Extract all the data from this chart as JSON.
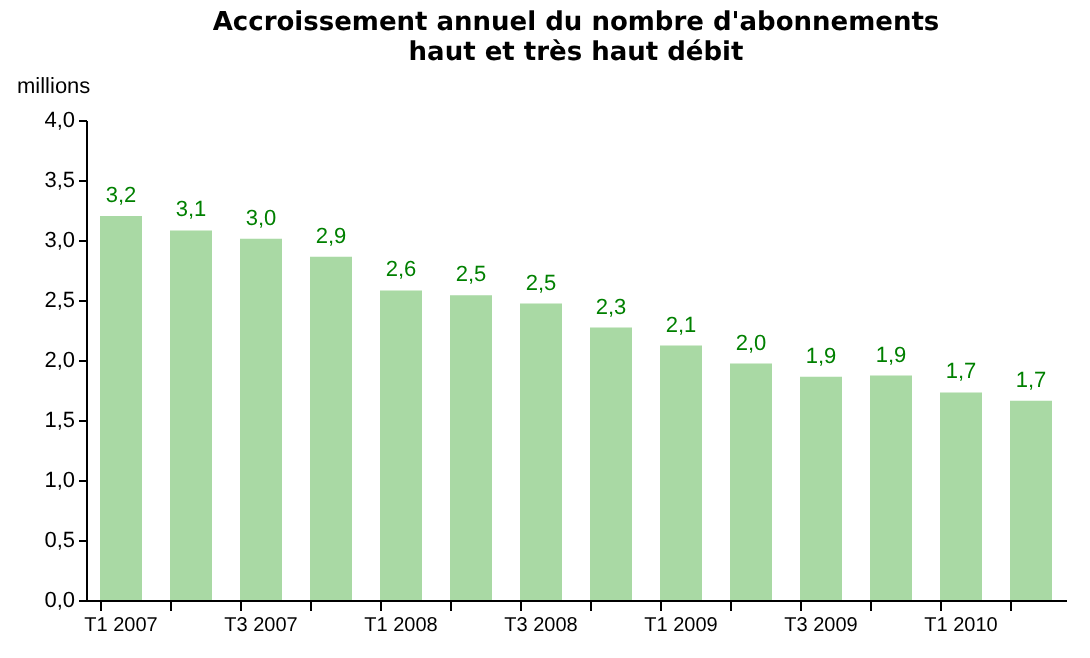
{
  "chart_data": {
    "type": "bar",
    "title": "Accroissement annuel du nombre d'abonnements\nhaut et très haut débit",
    "ylabel": "millions",
    "categories": [
      "T1 2007",
      null,
      "T3 2007",
      null,
      "T1 2008",
      null,
      "T3 2008",
      null,
      "T1 2009",
      null,
      "T3 2009",
      null,
      "T1 2010",
      null
    ],
    "values": [
      3.2,
      3.08,
      3.01,
      2.86,
      2.58,
      2.54,
      2.47,
      2.27,
      2.12,
      1.97,
      1.86,
      1.87,
      1.73,
      1.66
    ],
    "value_labels": [
      "3,2",
      "3,1",
      "3,0",
      "2,9",
      "2,6",
      "2,5",
      "2,5",
      "2,3",
      "2,1",
      "2,0",
      "1,9",
      "1,9",
      "1,7",
      "1,7"
    ],
    "color": "#a9d9a4",
    "ylim": [
      0,
      4
    ],
    "yticks": [
      {
        "value": 0,
        "label": "0,0"
      },
      {
        "value": 0.5,
        "label": "0,5"
      },
      {
        "value": 1,
        "label": "1,0"
      },
      {
        "value": 1.5,
        "label": "1,5"
      },
      {
        "value": 2,
        "label": "2,0"
      },
      {
        "value": 2.5,
        "label": "2,5"
      },
      {
        "value": 3,
        "label": "3,0"
      },
      {
        "value": 3.5,
        "label": "3,5"
      },
      {
        "value": 4,
        "label": "4,0"
      }
    ],
    "grid": false
  }
}
